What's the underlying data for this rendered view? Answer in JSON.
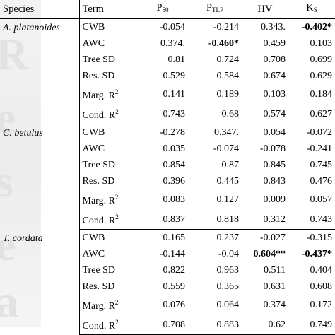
{
  "headers": {
    "species": "Species",
    "term": "Term",
    "p50": {
      "main": "P",
      "sub": "50"
    },
    "ptlp": {
      "main": "P",
      "sub": "TLP"
    },
    "hv": "HV",
    "ks": {
      "main": "K",
      "sub": "S"
    }
  },
  "groups": [
    {
      "species": "A. platanoides",
      "rows": [
        {
          "term": "CWB",
          "p50": "-0.054",
          "ptlp": "-0.214",
          "hv": "0.343.",
          "ks": "-0.402*",
          "bold": [
            "ks"
          ]
        },
        {
          "term": "AWC",
          "p50": "0.374.",
          "ptlp": "-0.460*",
          "hv": "0.459",
          "ks": "0.103",
          "bold": [
            "ptlp"
          ]
        },
        {
          "term": "Tree SD",
          "p50": "0.81",
          "ptlp": "0.724",
          "hv": "0.708",
          "ks": "0.699",
          "bold": []
        },
        {
          "term": "Res. SD",
          "p50": "0.529",
          "ptlp": "0.584",
          "hv": "0.674",
          "ks": "0.629",
          "bold": []
        },
        {
          "term": "Marg. R",
          "sup": "2",
          "p50": "0.141",
          "ptlp": "0.189",
          "hv": "0.103",
          "ks": "0.184",
          "bold": []
        },
        {
          "term": "Cond. R",
          "sup": "2",
          "p50": "0.743",
          "ptlp": "0.68",
          "hv": "0.574",
          "ks": "0.627",
          "bold": []
        }
      ]
    },
    {
      "species": "C. betulus",
      "rows": [
        {
          "term": "CWB",
          "p50": "-0.278",
          "ptlp": "0.347.",
          "hv": "0.054",
          "ks": "-0.072",
          "bold": []
        },
        {
          "term": "AWC",
          "p50": "0.035",
          "ptlp": "-0.074",
          "hv": "-0.078",
          "ks": "-0.241",
          "bold": []
        },
        {
          "term": "Tree SD",
          "p50": "0.854",
          "ptlp": "0.87",
          "hv": "0.845",
          "ks": "0.745",
          "bold": []
        },
        {
          "term": "Res. SD",
          "p50": "0.396",
          "ptlp": "0.445",
          "hv": "0.843",
          "ks": "0.476",
          "bold": []
        },
        {
          "term": "Marg. R",
          "sup": "2",
          "p50": "0.083",
          "ptlp": "0.127",
          "hv": "0.009",
          "ks": "0.057",
          "bold": []
        },
        {
          "term": "Cond. R",
          "sup": "2",
          "p50": "0.837",
          "ptlp": "0.818",
          "hv": "0.312",
          "ks": "0.743",
          "bold": []
        }
      ]
    },
    {
      "species": "T. cordata",
      "rows": [
        {
          "term": "CWB",
          "p50": "0.165",
          "ptlp": "0.237",
          "hv": "-0.027",
          "ks": "-0.315",
          "bold": []
        },
        {
          "term": "AWC",
          "p50": "-0.144",
          "ptlp": "-0.04",
          "hv": "0.604**",
          "ks": "-0.437*",
          "bold": [
            "hv",
            "ks"
          ]
        },
        {
          "term": "Tree SD",
          "p50": "0.822",
          "ptlp": "0.963",
          "hv": "0.511",
          "ks": "0.404",
          "bold": []
        },
        {
          "term": "Res. SD",
          "p50": "0.559",
          "ptlp": "0.365",
          "hv": "0.631",
          "ks": "0.608",
          "bold": []
        },
        {
          "term": "Marg. R",
          "sup": "2",
          "p50": "0.076",
          "ptlp": "0.064",
          "hv": "0.374",
          "ks": "0.172",
          "bold": []
        },
        {
          "term": "Cond. R",
          "sup": "2",
          "p50": "0.708",
          "ptlp": "0.883",
          "hv": "0.62",
          "ks": "0.749",
          "bold": []
        }
      ]
    }
  ]
}
